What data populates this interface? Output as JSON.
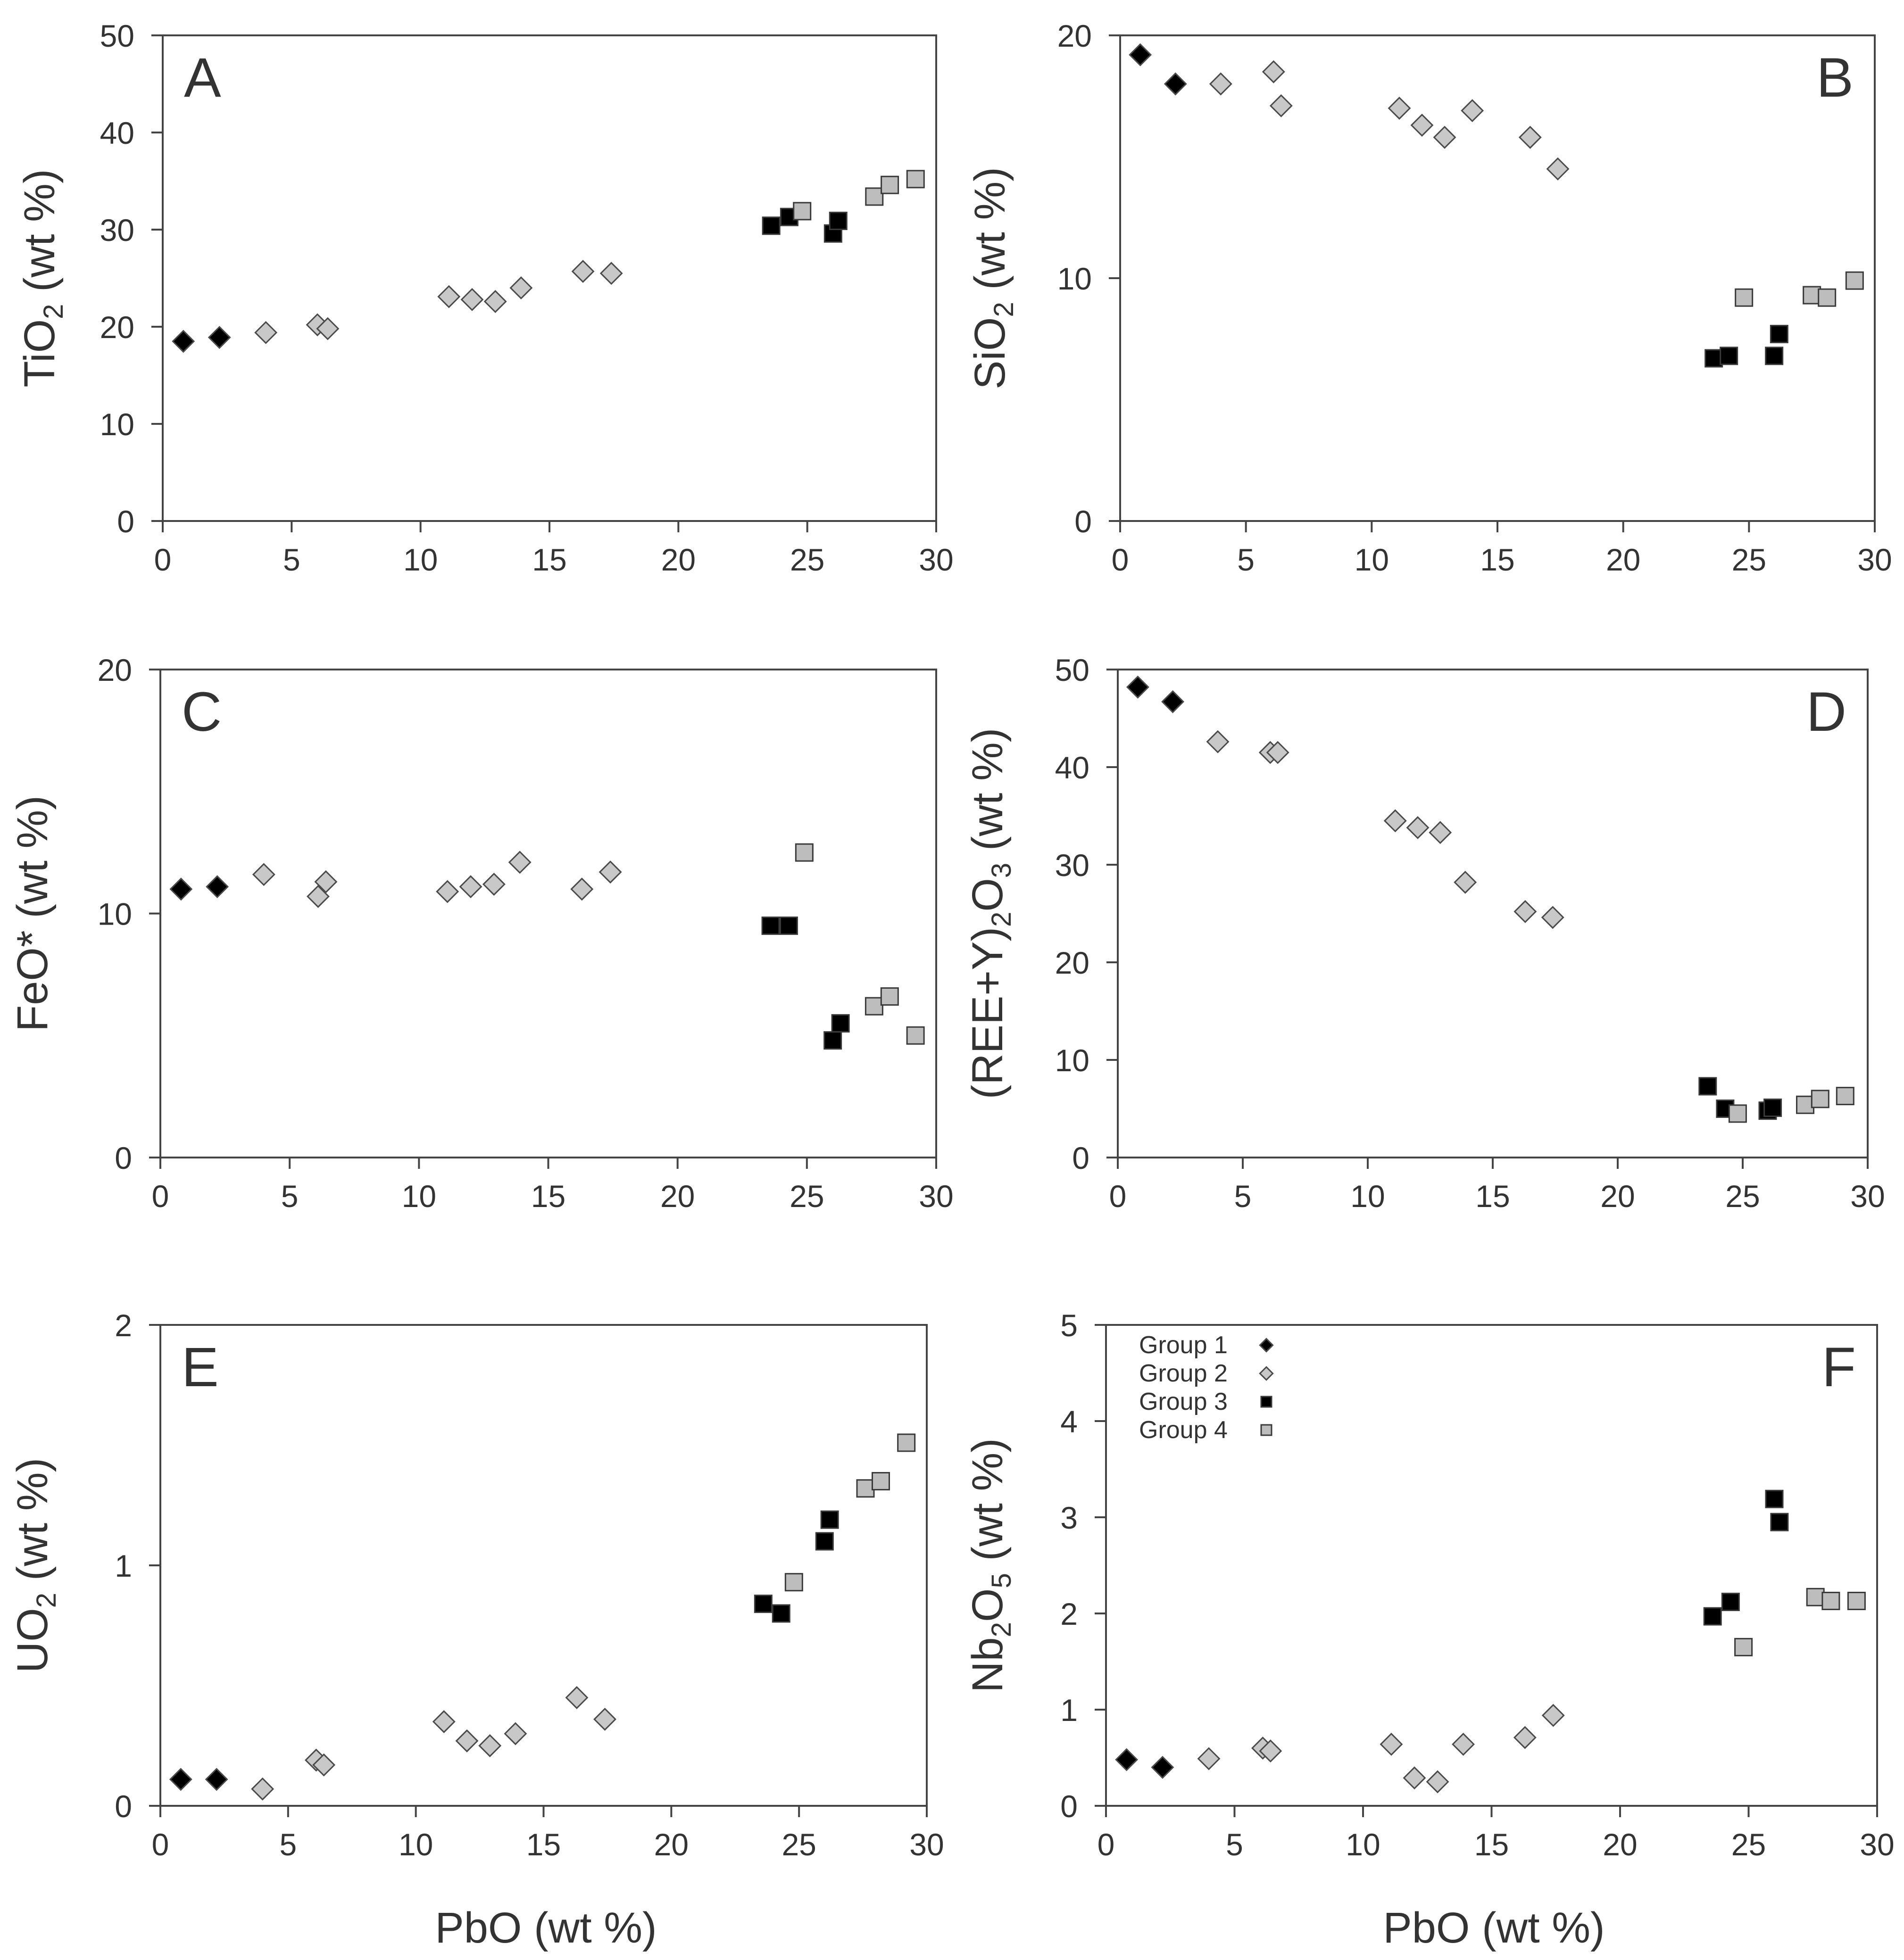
{
  "figure_colors": {
    "group1": "#000000",
    "group2": "#c8c8c8",
    "group3": "#000000",
    "group4": "#bdbdbd",
    "axis": "#444444",
    "text": "#333333"
  },
  "legend": {
    "entries": [
      {
        "label": "Group 1",
        "marker": "diamond",
        "fill": "#000000"
      },
      {
        "label": "Group 2",
        "marker": "diamond",
        "fill": "#c8c8c8"
      },
      {
        "label": "Group 3",
        "marker": "square",
        "fill": "#000000"
      },
      {
        "label": "Group 4",
        "marker": "square",
        "fill": "#bdbdbd"
      }
    ],
    "panel": "F",
    "placement": "top-left"
  },
  "chart_data": [
    {
      "panel": "A",
      "type": "scatter",
      "ylabel": "TiO2 (wt %)",
      "ylabel_main": "TiO",
      "ylabel_sub": "2",
      "ylabel_tail": " (wt %)",
      "xlabel": "",
      "xlim": [
        0,
        30
      ],
      "ylim": [
        0,
        50
      ],
      "xticks": [
        0,
        5,
        10,
        15,
        20,
        25,
        30
      ],
      "yticks": [
        0,
        10,
        20,
        30,
        40,
        50
      ],
      "letter_pos": "top-left",
      "series": [
        {
          "name": "Group 1",
          "x": [
            0.8,
            2.2
          ],
          "y": [
            18.5,
            18.9
          ]
        },
        {
          "name": "Group 2",
          "x": [
            4.0,
            6.0,
            6.4,
            11.1,
            12.0,
            12.9,
            13.9,
            16.3,
            17.4
          ],
          "y": [
            19.4,
            20.2,
            19.8,
            23.1,
            22.8,
            22.6,
            24.0,
            25.7,
            25.5
          ]
        },
        {
          "name": "Group 3",
          "x": [
            23.6,
            24.3,
            26.0,
            26.2
          ],
          "y": [
            30.4,
            31.3,
            29.6,
            30.9
          ]
        },
        {
          "name": "Group 4",
          "x": [
            24.8,
            27.6,
            28.2,
            29.2
          ],
          "y": [
            31.9,
            33.4,
            34.6,
            35.2
          ]
        }
      ]
    },
    {
      "panel": "B",
      "type": "scatter",
      "ylabel": "SiO2 (wt %)",
      "ylabel_main": "SiO",
      "ylabel_sub": "2",
      "ylabel_tail": " (wt %)",
      "xlabel": "",
      "xlim": [
        0,
        30
      ],
      "ylim": [
        0,
        20
      ],
      "xticks": [
        0,
        5,
        10,
        15,
        20,
        25,
        30
      ],
      "yticks": [
        0,
        10,
        20
      ],
      "letter_pos": "top-right",
      "series": [
        {
          "name": "Group 1",
          "x": [
            0.8,
            2.2
          ],
          "y": [
            19.2,
            18.0
          ]
        },
        {
          "name": "Group 2",
          "x": [
            4.0,
            6.1,
            6.4,
            11.1,
            12.0,
            12.9,
            14.0,
            16.3,
            17.4
          ],
          "y": [
            18.0,
            18.5,
            17.1,
            17.0,
            16.3,
            15.8,
            16.9,
            15.8,
            14.5
          ]
        },
        {
          "name": "Group 3",
          "x": [
            23.6,
            24.2,
            26.0,
            26.2
          ],
          "y": [
            6.7,
            6.8,
            6.8,
            7.7
          ]
        },
        {
          "name": "Group 4",
          "x": [
            24.8,
            27.5,
            28.1,
            29.2
          ],
          "y": [
            9.2,
            9.3,
            9.2,
            9.9
          ]
        }
      ]
    },
    {
      "panel": "C",
      "type": "scatter",
      "ylabel": "FeO* (wt %)",
      "ylabel_main": "FeO* (wt %)",
      "ylabel_sub": "",
      "ylabel_tail": "",
      "xlabel": "",
      "xlim": [
        0,
        30
      ],
      "ylim": [
        0,
        20
      ],
      "xticks": [
        0,
        5,
        10,
        15,
        20,
        25,
        30
      ],
      "yticks": [
        0,
        10,
        20
      ],
      "letter_pos": "top-left",
      "series": [
        {
          "name": "Group 1",
          "x": [
            0.8,
            2.2
          ],
          "y": [
            11.0,
            11.1
          ]
        },
        {
          "name": "Group 2",
          "x": [
            4.0,
            6.1,
            6.4,
            11.1,
            12.0,
            12.9,
            13.9,
            16.3,
            17.4
          ],
          "y": [
            11.6,
            10.7,
            11.3,
            10.9,
            11.1,
            11.2,
            12.1,
            11.0,
            11.7
          ]
        },
        {
          "name": "Group 3",
          "x": [
            23.6,
            24.3,
            26.0,
            26.3
          ],
          "y": [
            9.5,
            9.5,
            4.8,
            5.5
          ]
        },
        {
          "name": "Group 4",
          "x": [
            24.9,
            27.6,
            28.2,
            29.2
          ],
          "y": [
            12.5,
            6.2,
            6.6,
            5.0
          ]
        }
      ]
    },
    {
      "panel": "D",
      "type": "scatter",
      "ylabel": "(REE+Y)2O3 (wt %)",
      "ylabel_main": "(REE+Y)",
      "ylabel_sub": "2",
      "ylabel_tail": "O3 (wt %)",
      "ylabel_tail_main": "O",
      "ylabel_tail_sub": "3",
      "ylabel_tail_rest": " (wt %)",
      "xlabel": "",
      "xlim": [
        0,
        30
      ],
      "ylim": [
        0,
        50
      ],
      "xticks": [
        0,
        5,
        10,
        15,
        20,
        25,
        30
      ],
      "yticks": [
        0,
        10,
        20,
        30,
        40,
        50
      ],
      "letter_pos": "top-right",
      "series": [
        {
          "name": "Group 1",
          "x": [
            0.8,
            2.2
          ],
          "y": [
            48.2,
            46.7
          ]
        },
        {
          "name": "Group 2",
          "x": [
            4.0,
            6.1,
            6.4,
            11.1,
            12.0,
            12.9,
            13.9,
            16.3,
            17.4
          ],
          "y": [
            42.6,
            41.5,
            41.5,
            34.5,
            33.8,
            33.3,
            28.2,
            25.2,
            24.6
          ]
        },
        {
          "name": "Group 3",
          "x": [
            23.6,
            24.3,
            26.0,
            26.2
          ],
          "y": [
            7.3,
            5.0,
            4.8,
            5.1
          ]
        },
        {
          "name": "Group 4",
          "x": [
            24.8,
            27.5,
            28.1,
            29.1
          ],
          "y": [
            4.5,
            5.4,
            6.0,
            6.3
          ]
        }
      ]
    },
    {
      "panel": "E",
      "type": "scatter",
      "ylabel": "UO2 (wt %)",
      "ylabel_main": "UO",
      "ylabel_sub": "2",
      "ylabel_tail": " (wt %)",
      "xlabel": "PbO (wt %)",
      "xlim": [
        0,
        30
      ],
      "ylim": [
        0,
        2
      ],
      "xticks": [
        0,
        5,
        10,
        15,
        20,
        25,
        30
      ],
      "yticks": [
        0,
        1,
        2
      ],
      "letter_pos": "top-left",
      "series": [
        {
          "name": "Group 1",
          "x": [
            0.8,
            2.2
          ],
          "y": [
            0.11,
            0.11
          ]
        },
        {
          "name": "Group 2",
          "x": [
            4.0,
            6.1,
            6.4,
            11.1,
            12.0,
            12.9,
            13.9,
            16.3,
            17.4
          ],
          "y": [
            0.07,
            0.19,
            0.17,
            0.35,
            0.27,
            0.25,
            0.3,
            0.45,
            0.36
          ]
        },
        {
          "name": "Group 3",
          "x": [
            23.6,
            24.3,
            26.0,
            26.2
          ],
          "y": [
            0.84,
            0.8,
            1.1,
            1.19
          ]
        },
        {
          "name": "Group 4",
          "x": [
            24.8,
            27.6,
            28.2,
            29.2
          ],
          "y": [
            0.93,
            1.32,
            1.35,
            1.51
          ]
        }
      ]
    },
    {
      "panel": "F",
      "type": "scatter",
      "ylabel": "Nb2O5 (wt %)",
      "ylabel_main": "Nb",
      "ylabel_sub": "2",
      "ylabel_tail": "O5 (wt %)",
      "ylabel_tail_main": "O",
      "ylabel_tail_sub": "5",
      "ylabel_tail_rest": " (wt %)",
      "xlabel": "PbO (wt %)",
      "xlim": [
        0,
        30
      ],
      "ylim": [
        0,
        5
      ],
      "xticks": [
        0,
        5,
        10,
        15,
        20,
        25,
        30
      ],
      "yticks": [
        0,
        1,
        2,
        3,
        4,
        5
      ],
      "letter_pos": "top-right",
      "series": [
        {
          "name": "Group 1",
          "x": [
            0.8,
            2.2
          ],
          "y": [
            0.48,
            0.4
          ]
        },
        {
          "name": "Group 2",
          "x": [
            4.0,
            6.1,
            6.4,
            11.1,
            12.0,
            12.9,
            13.9,
            16.3,
            17.4
          ],
          "y": [
            0.49,
            0.6,
            0.57,
            0.64,
            0.29,
            0.25,
            0.64,
            0.71,
            0.94
          ]
        },
        {
          "name": "Group 3",
          "x": [
            23.6,
            24.3,
            26.0,
            26.2
          ],
          "y": [
            1.97,
            2.12,
            3.19,
            2.95
          ]
        },
        {
          "name": "Group 4",
          "x": [
            24.8,
            27.6,
            28.2,
            29.2
          ],
          "y": [
            1.65,
            2.17,
            2.13,
            2.13
          ]
        }
      ]
    }
  ]
}
